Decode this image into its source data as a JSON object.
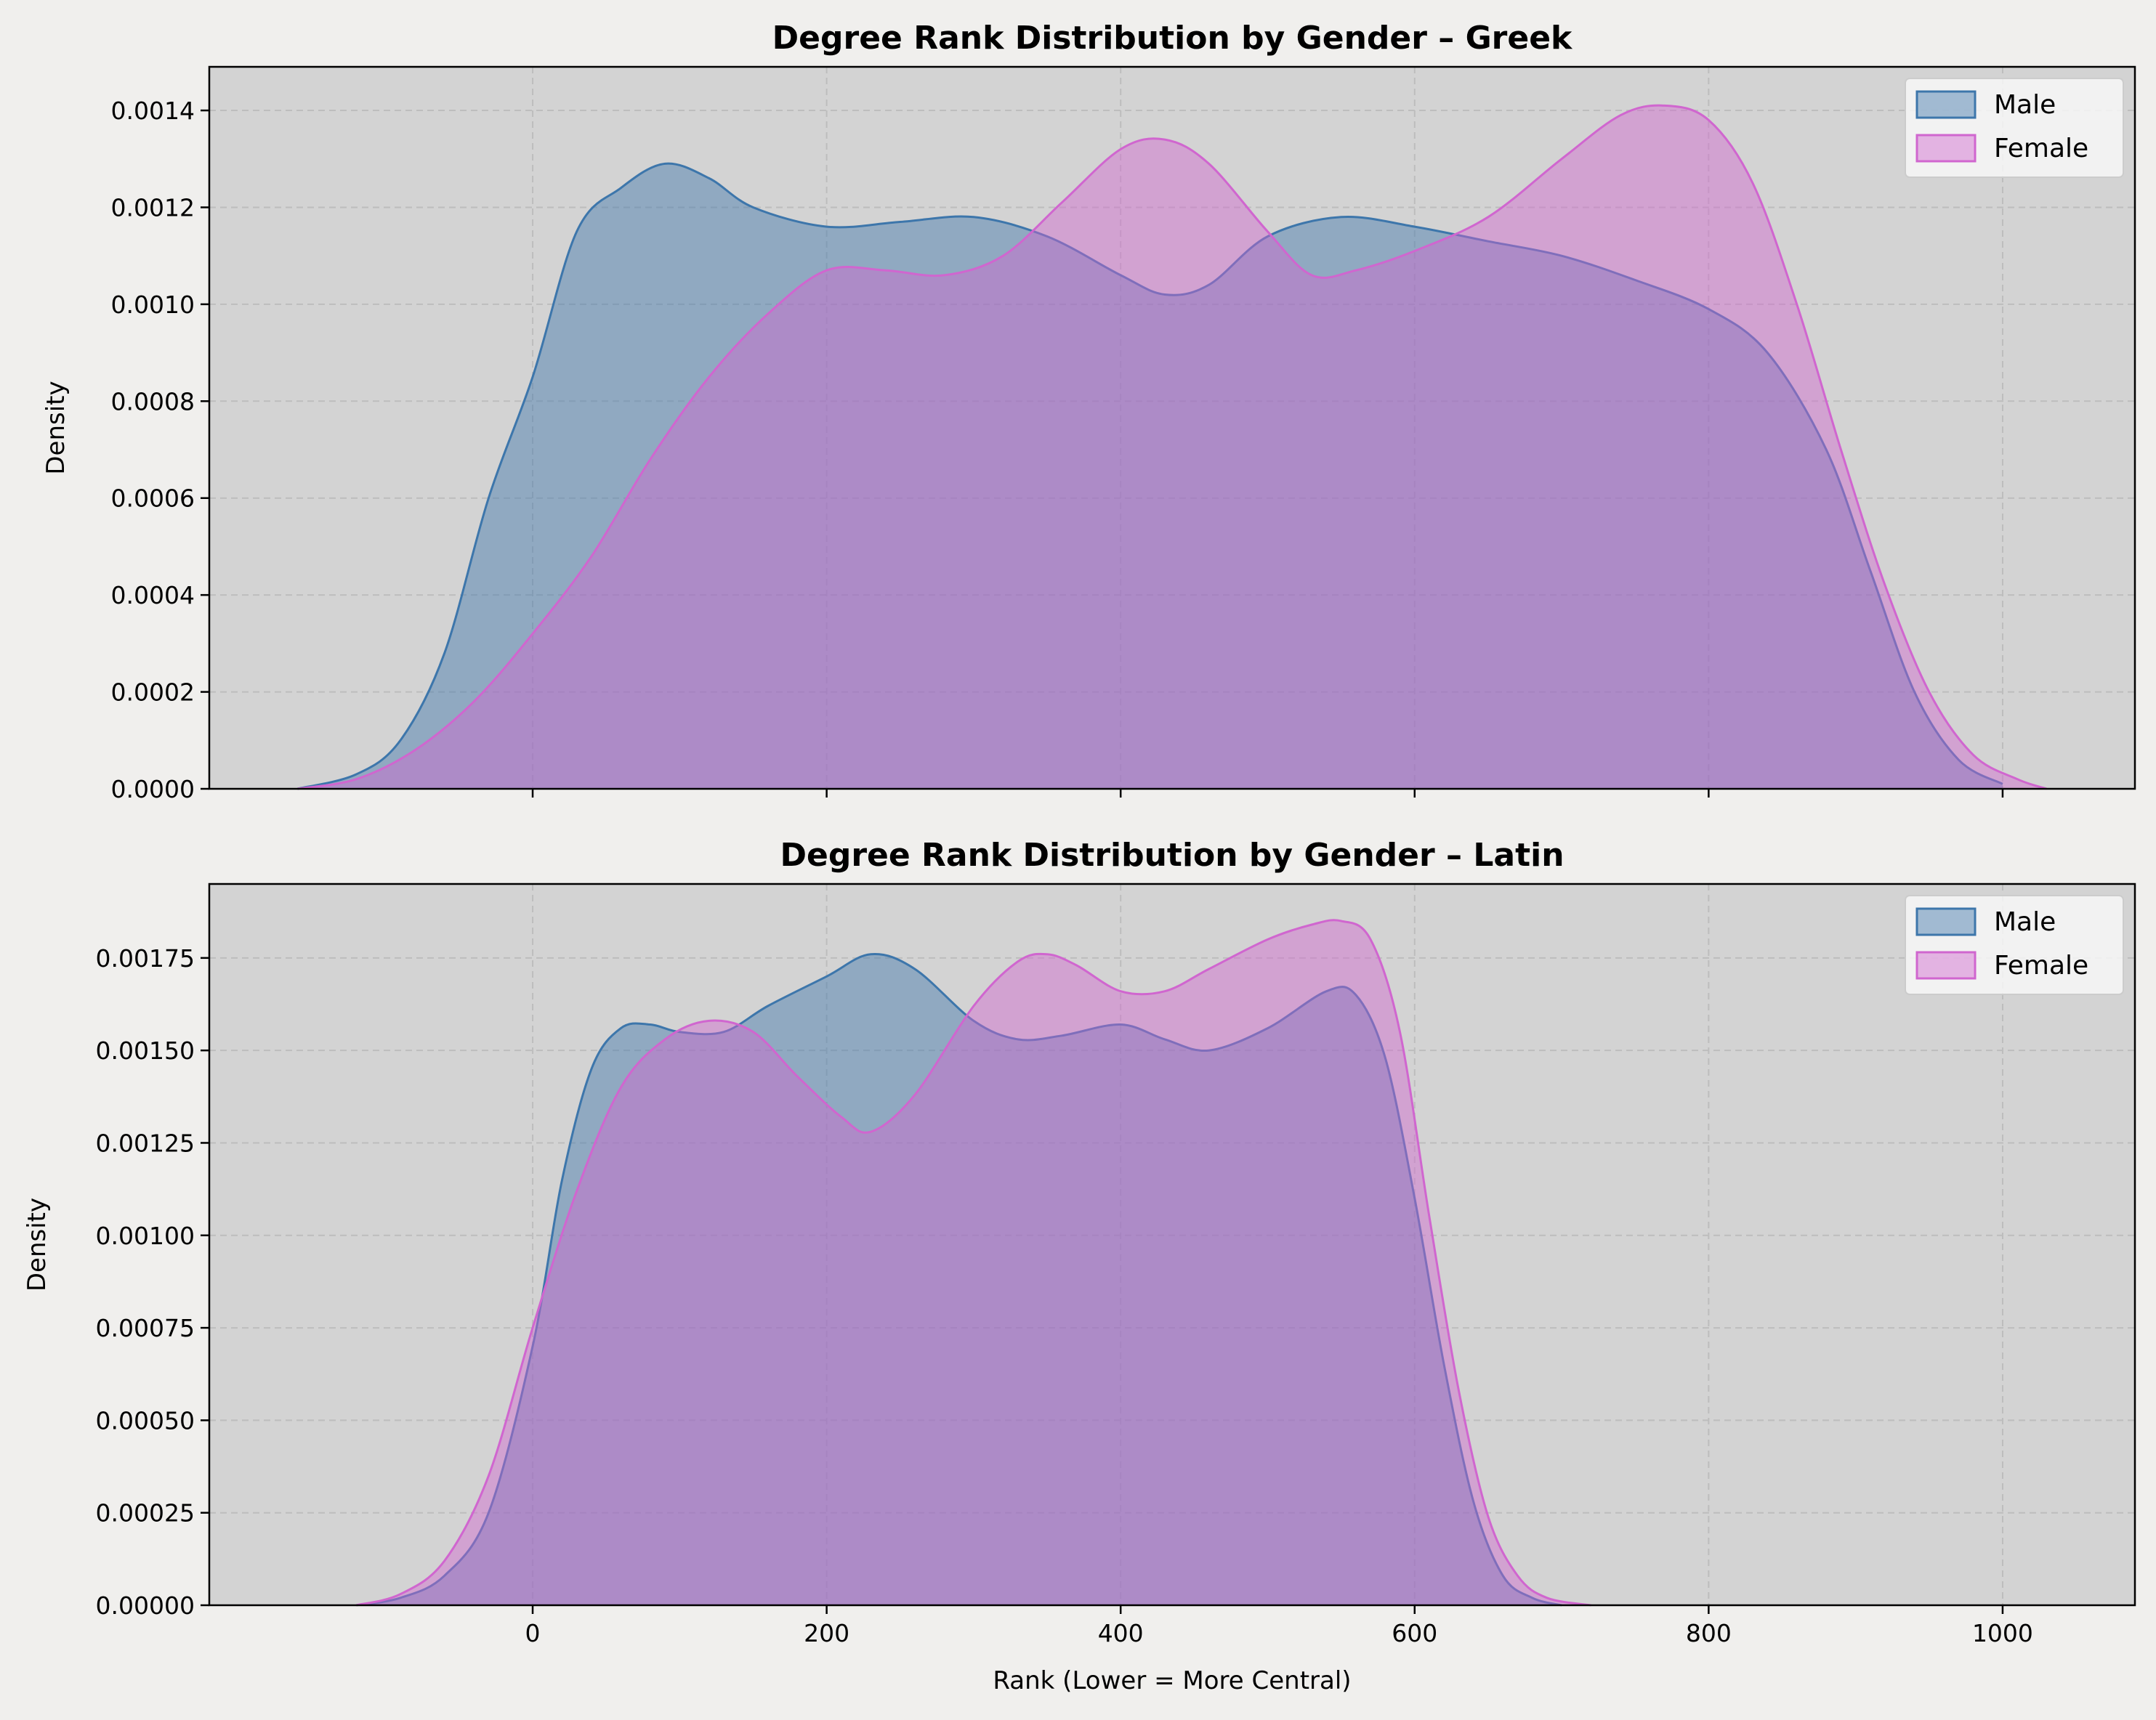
{
  "chart_data": [
    {
      "type": "area",
      "title": "Degree Rank Distribution by Gender – Greek",
      "xlabel": "",
      "ylabel": "Density",
      "xlim": [
        -220,
        1090
      ],
      "ylim": [
        0,
        0.00149
      ],
      "xticks": [
        0,
        200,
        400,
        600,
        800,
        1000
      ],
      "yticks": [
        0,
        0.0002,
        0.0004,
        0.0006,
        0.0008,
        0.001,
        0.0012,
        0.0014
      ],
      "ytick_labels": [
        "0.0000",
        "0.0002",
        "0.0004",
        "0.0006",
        "0.0008",
        "0.0010",
        "0.0012",
        "0.0014"
      ],
      "show_xtick_labels": false,
      "grid": true,
      "legend_position": "top-right",
      "series": [
        {
          "name": "Male",
          "color": "#3d76ab",
          "x": [
            -160,
            -120,
            -90,
            -60,
            -30,
            0,
            30,
            60,
            90,
            120,
            150,
            200,
            250,
            300,
            350,
            400,
            430,
            460,
            500,
            550,
            600,
            650,
            700,
            750,
            800,
            840,
            880,
            910,
            940,
            970,
            1000
          ],
          "y": [
            0.0,
            3e-05,
            0.0001,
            0.00028,
            0.0006,
            0.00085,
            0.00115,
            0.00124,
            0.00129,
            0.00126,
            0.0012,
            0.00116,
            0.00117,
            0.00118,
            0.00114,
            0.00106,
            0.00102,
            0.00104,
            0.00114,
            0.00118,
            0.00116,
            0.00113,
            0.0011,
            0.00105,
            0.00099,
            0.0009,
            0.0007,
            0.00045,
            0.0002,
            6e-05,
            1e-05
          ]
        },
        {
          "name": "Female",
          "color": "#d066cf",
          "x": [
            -160,
            -120,
            -80,
            -40,
            0,
            40,
            80,
            120,
            160,
            200,
            240,
            280,
            320,
            360,
            400,
            430,
            460,
            500,
            530,
            560,
            600,
            650,
            700,
            740,
            770,
            800,
            830,
            860,
            890,
            920,
            950,
            980,
            1010,
            1030
          ],
          "y": [
            0.0,
            2e-05,
            8e-05,
            0.00018,
            0.00032,
            0.00048,
            0.00068,
            0.00085,
            0.00098,
            0.00107,
            0.00107,
            0.00106,
            0.0011,
            0.00121,
            0.00132,
            0.00134,
            0.00129,
            0.00115,
            0.00106,
            0.00107,
            0.00111,
            0.00118,
            0.0013,
            0.00139,
            0.00141,
            0.00138,
            0.00125,
            0.001,
            0.0007,
            0.00042,
            0.0002,
            7e-05,
            2e-05,
            0.0
          ]
        }
      ]
    },
    {
      "type": "area",
      "title": "Degree Rank Distribution by Gender – Latin",
      "xlabel": "Rank (Lower = More Central)",
      "ylabel": "Density",
      "xlim": [
        -220,
        1090
      ],
      "ylim": [
        0,
        0.00195
      ],
      "xticks": [
        0,
        200,
        400,
        600,
        800,
        1000
      ],
      "xtick_labels": [
        "0",
        "200",
        "400",
        "600",
        "800",
        "1000"
      ],
      "yticks": [
        0,
        0.00025,
        0.0005,
        0.00075,
        0.001,
        0.00125,
        0.0015,
        0.00175
      ],
      "ytick_labels": [
        "0.00000",
        "0.00025",
        "0.00050",
        "0.00075",
        "0.00100",
        "0.00125",
        "0.00150",
        "0.00175"
      ],
      "show_xtick_labels": true,
      "grid": true,
      "legend_position": "top-right",
      "series": [
        {
          "name": "Male",
          "color": "#3d76ab",
          "x": [
            -120,
            -90,
            -60,
            -30,
            0,
            20,
            40,
            60,
            80,
            100,
            130,
            160,
            200,
            230,
            260,
            300,
            330,
            360,
            400,
            430,
            460,
            500,
            540,
            560,
            580,
            600,
            620,
            640,
            660,
            680,
            700
          ],
          "y": [
            0.0,
            2e-05,
            8e-05,
            0.00025,
            0.0007,
            0.00115,
            0.00145,
            0.00156,
            0.00157,
            0.00155,
            0.00155,
            0.00162,
            0.0017,
            0.00176,
            0.00172,
            0.00158,
            0.00153,
            0.00154,
            0.00157,
            0.00153,
            0.0015,
            0.00156,
            0.00166,
            0.00165,
            0.00148,
            0.0011,
            0.00065,
            0.00028,
            8e-05,
            2e-05,
            0.0
          ]
        },
        {
          "name": "Female",
          "color": "#d066cf",
          "x": [
            -120,
            -90,
            -60,
            -30,
            0,
            30,
            60,
            90,
            120,
            150,
            180,
            210,
            230,
            260,
            300,
            330,
            350,
            370,
            400,
            430,
            460,
            500,
            530,
            550,
            570,
            590,
            610,
            630,
            650,
            670,
            690,
            720
          ],
          "y": [
            0.0,
            3e-05,
            0.00012,
            0.00035,
            0.00075,
            0.00112,
            0.0014,
            0.00153,
            0.00158,
            0.00155,
            0.00143,
            0.00132,
            0.00128,
            0.00138,
            0.00162,
            0.00174,
            0.00176,
            0.00173,
            0.00166,
            0.00166,
            0.00172,
            0.0018,
            0.00184,
            0.00185,
            0.0018,
            0.00155,
            0.00105,
            0.00058,
            0.00024,
            8e-05,
            2e-05,
            0.0
          ]
        }
      ]
    }
  ]
}
